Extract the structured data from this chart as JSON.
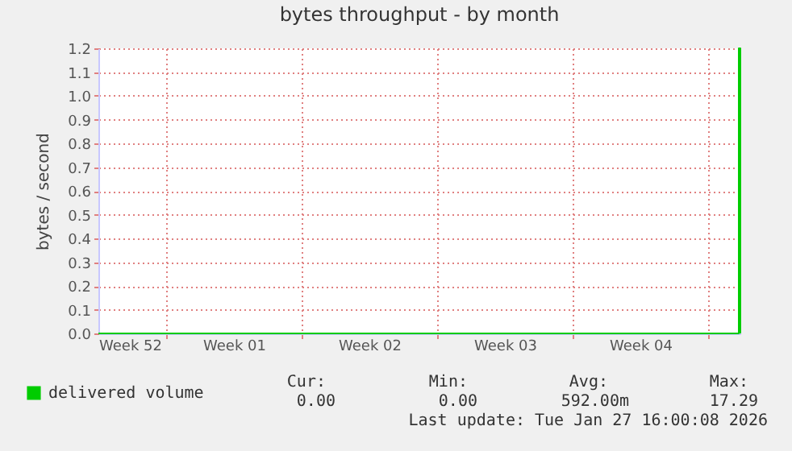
{
  "chart_data": {
    "type": "step",
    "title": "bytes throughput - by month",
    "ylabel": "bytes / second",
    "x": [
      "2025-12-25T12:00",
      "2026-01-27T14:00",
      "2026-01-27T16:00"
    ],
    "series": [
      {
        "name": "delivered volume",
        "color": "#00cc00",
        "values": [
          0,
          1.2,
          0
        ]
      }
    ],
    "xlim": [
      "2025-12-25T12:00",
      "2026-01-27T16:00"
    ],
    "xticks": [
      {
        "value": "2025-12-25T12:00",
        "label": "Week 52"
      },
      {
        "value": "2025-12-29T00:00",
        "label": null
      },
      {
        "value": "2026-01-01T12:00",
        "label": "Week 01"
      },
      {
        "value": "2026-01-05T00:00",
        "label": null
      },
      {
        "value": "2026-01-08T12:00",
        "label": "Week 02"
      },
      {
        "value": "2026-01-12T00:00",
        "label": null
      },
      {
        "value": "2026-01-15T12:00",
        "label": "Week 03"
      },
      {
        "value": "2026-01-19T00:00",
        "label": null
      },
      {
        "value": "2026-01-22T12:00",
        "label": "Week 04"
      },
      {
        "value": "2026-01-26T00:00",
        "label": null
      }
    ],
    "ylim": [
      0,
      1.2
    ],
    "yticks": [
      {
        "value": 0,
        "label": "0.0"
      },
      {
        "value": 0.1,
        "label": "0.1"
      },
      {
        "value": 0.2,
        "label": "0.2"
      },
      {
        "value": 0.3,
        "label": "0.3"
      },
      {
        "value": 0.4,
        "label": "0.4"
      },
      {
        "value": 0.5,
        "label": "0.5"
      },
      {
        "value": 0.6,
        "label": "0.6"
      },
      {
        "value": 0.7,
        "label": "0.7"
      },
      {
        "value": 0.8,
        "label": "0.8"
      },
      {
        "value": 0.9,
        "label": "0.9"
      },
      {
        "value": 1,
        "label": "1.0"
      },
      {
        "value": 1.1,
        "label": "1.1"
      },
      {
        "value": 1.2,
        "label": "1.2"
      }
    ],
    "grid": true,
    "legend": "bottom left",
    "annotations": [
      "Cur:",
      "Min:",
      "Avg:",
      "Max:",
      "0.00",
      "0.00",
      "592.00m",
      "17.29",
      "Last update: Tue Jan 27 16:00:08 2026"
    ]
  }
}
